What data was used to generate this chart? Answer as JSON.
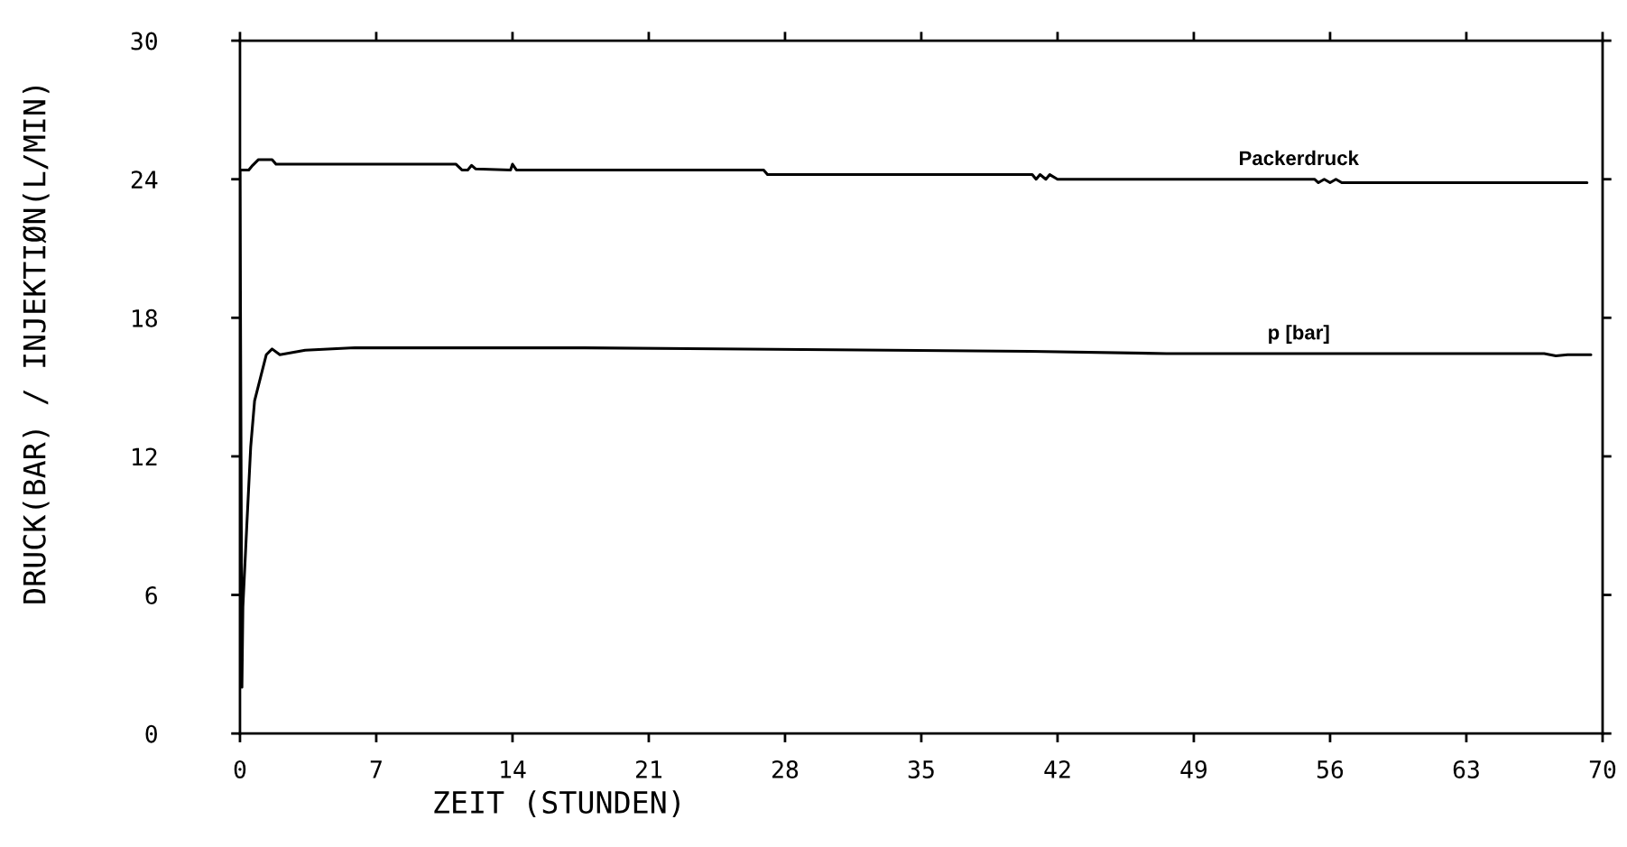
{
  "chart_data": {
    "type": "line",
    "xlabel": "ZEIT (STUNDEN)",
    "ylabel": "DRUCK(BAR) / INJEKTIØN(L/MIN)",
    "xlim": [
      0,
      70
    ],
    "xticks": [
      0,
      7,
      14,
      21,
      28,
      35,
      42,
      49,
      56,
      63,
      70
    ],
    "ylim": [
      0,
      30
    ],
    "yticks": [
      0,
      6,
      12,
      18,
      24,
      30
    ],
    "grid": false,
    "series": [
      {
        "name": "Packerdruck",
        "color": "#000000",
        "x": [
          0,
          0.45,
          0.65,
          0.95,
          1.65,
          1.85,
          11.1,
          11.4,
          11.7,
          11.9,
          12.1,
          13.9,
          14.0,
          14.2,
          26.9,
          27.1,
          40.7,
          40.9,
          41.1,
          41.4,
          41.6,
          42.0,
          55.2,
          55.4,
          55.7,
          56.0,
          56.3,
          56.6,
          69.2
        ],
        "values": [
          24.4,
          24.4,
          24.6,
          24.85,
          24.85,
          24.65,
          24.65,
          24.4,
          24.4,
          24.6,
          24.45,
          24.4,
          24.65,
          24.4,
          24.4,
          24.2,
          24.2,
          24.0,
          24.2,
          24.0,
          24.2,
          24.0,
          24.0,
          23.85,
          24.0,
          23.85,
          24.0,
          23.85,
          23.85
        ]
      },
      {
        "name": "p [bar]",
        "color": "#000000",
        "x": [
          0,
          0.1,
          0.15,
          0.35,
          0.55,
          0.75,
          1.05,
          1.35,
          1.65,
          2.05,
          3.35,
          5.9,
          17.7,
          40.6,
          47.6,
          67.0,
          67.6,
          68.2,
          69.4
        ],
        "values": [
          24.4,
          2.0,
          5.5,
          9.0,
          12.4,
          14.4,
          15.4,
          16.4,
          16.65,
          16.4,
          16.6,
          16.7,
          16.7,
          16.55,
          16.45,
          16.45,
          16.35,
          16.4,
          16.4
        ]
      }
    ]
  }
}
